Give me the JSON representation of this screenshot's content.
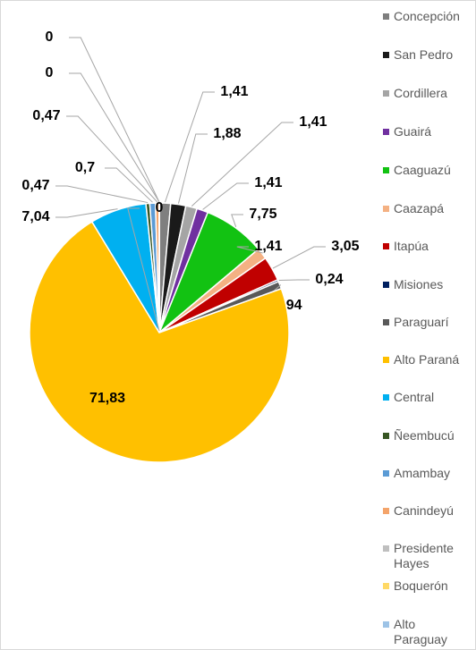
{
  "chart_data": {
    "type": "pie",
    "categories": [
      "Concepción",
      "San Pedro",
      "Cordillera",
      "Guairá",
      "Caaguazú",
      "Caazapá",
      "Itapúa",
      "Misiones",
      "Paraguarí",
      "Alto Paraná",
      "Central",
      "Ñeembucú",
      "Amambay",
      "Canindeyú",
      "Presidente Hayes",
      "Boquerón",
      "Alto Paraguay"
    ],
    "values": [
      1.41,
      1.88,
      1.41,
      1.41,
      7.75,
      1.41,
      3.05,
      0.24,
      0.94,
      71.83,
      7.04,
      0.47,
      0.7,
      0.47,
      0,
      0,
      0
    ],
    "value_labels": [
      "1,41",
      "1,88",
      "1,41",
      "1,41",
      "7,75",
      "1,41",
      "3,05",
      "0,24",
      "0,94",
      "71,83",
      "7,04",
      "0,47",
      "0,7",
      "0,47",
      "0",
      "0",
      "0"
    ],
    "colors": [
      "#7f7f7f",
      "#1a1a1a",
      "#a5a5a5",
      "#7030a0",
      "#12c212",
      "#f4b183",
      "#c00000",
      "#002060",
      "#595959",
      "#ffc000",
      "#00b0f0",
      "#375623",
      "#5b9bd5",
      "#f4a46a",
      "#bfbfbf",
      "#ffd966",
      "#9dc3e6"
    ]
  }
}
